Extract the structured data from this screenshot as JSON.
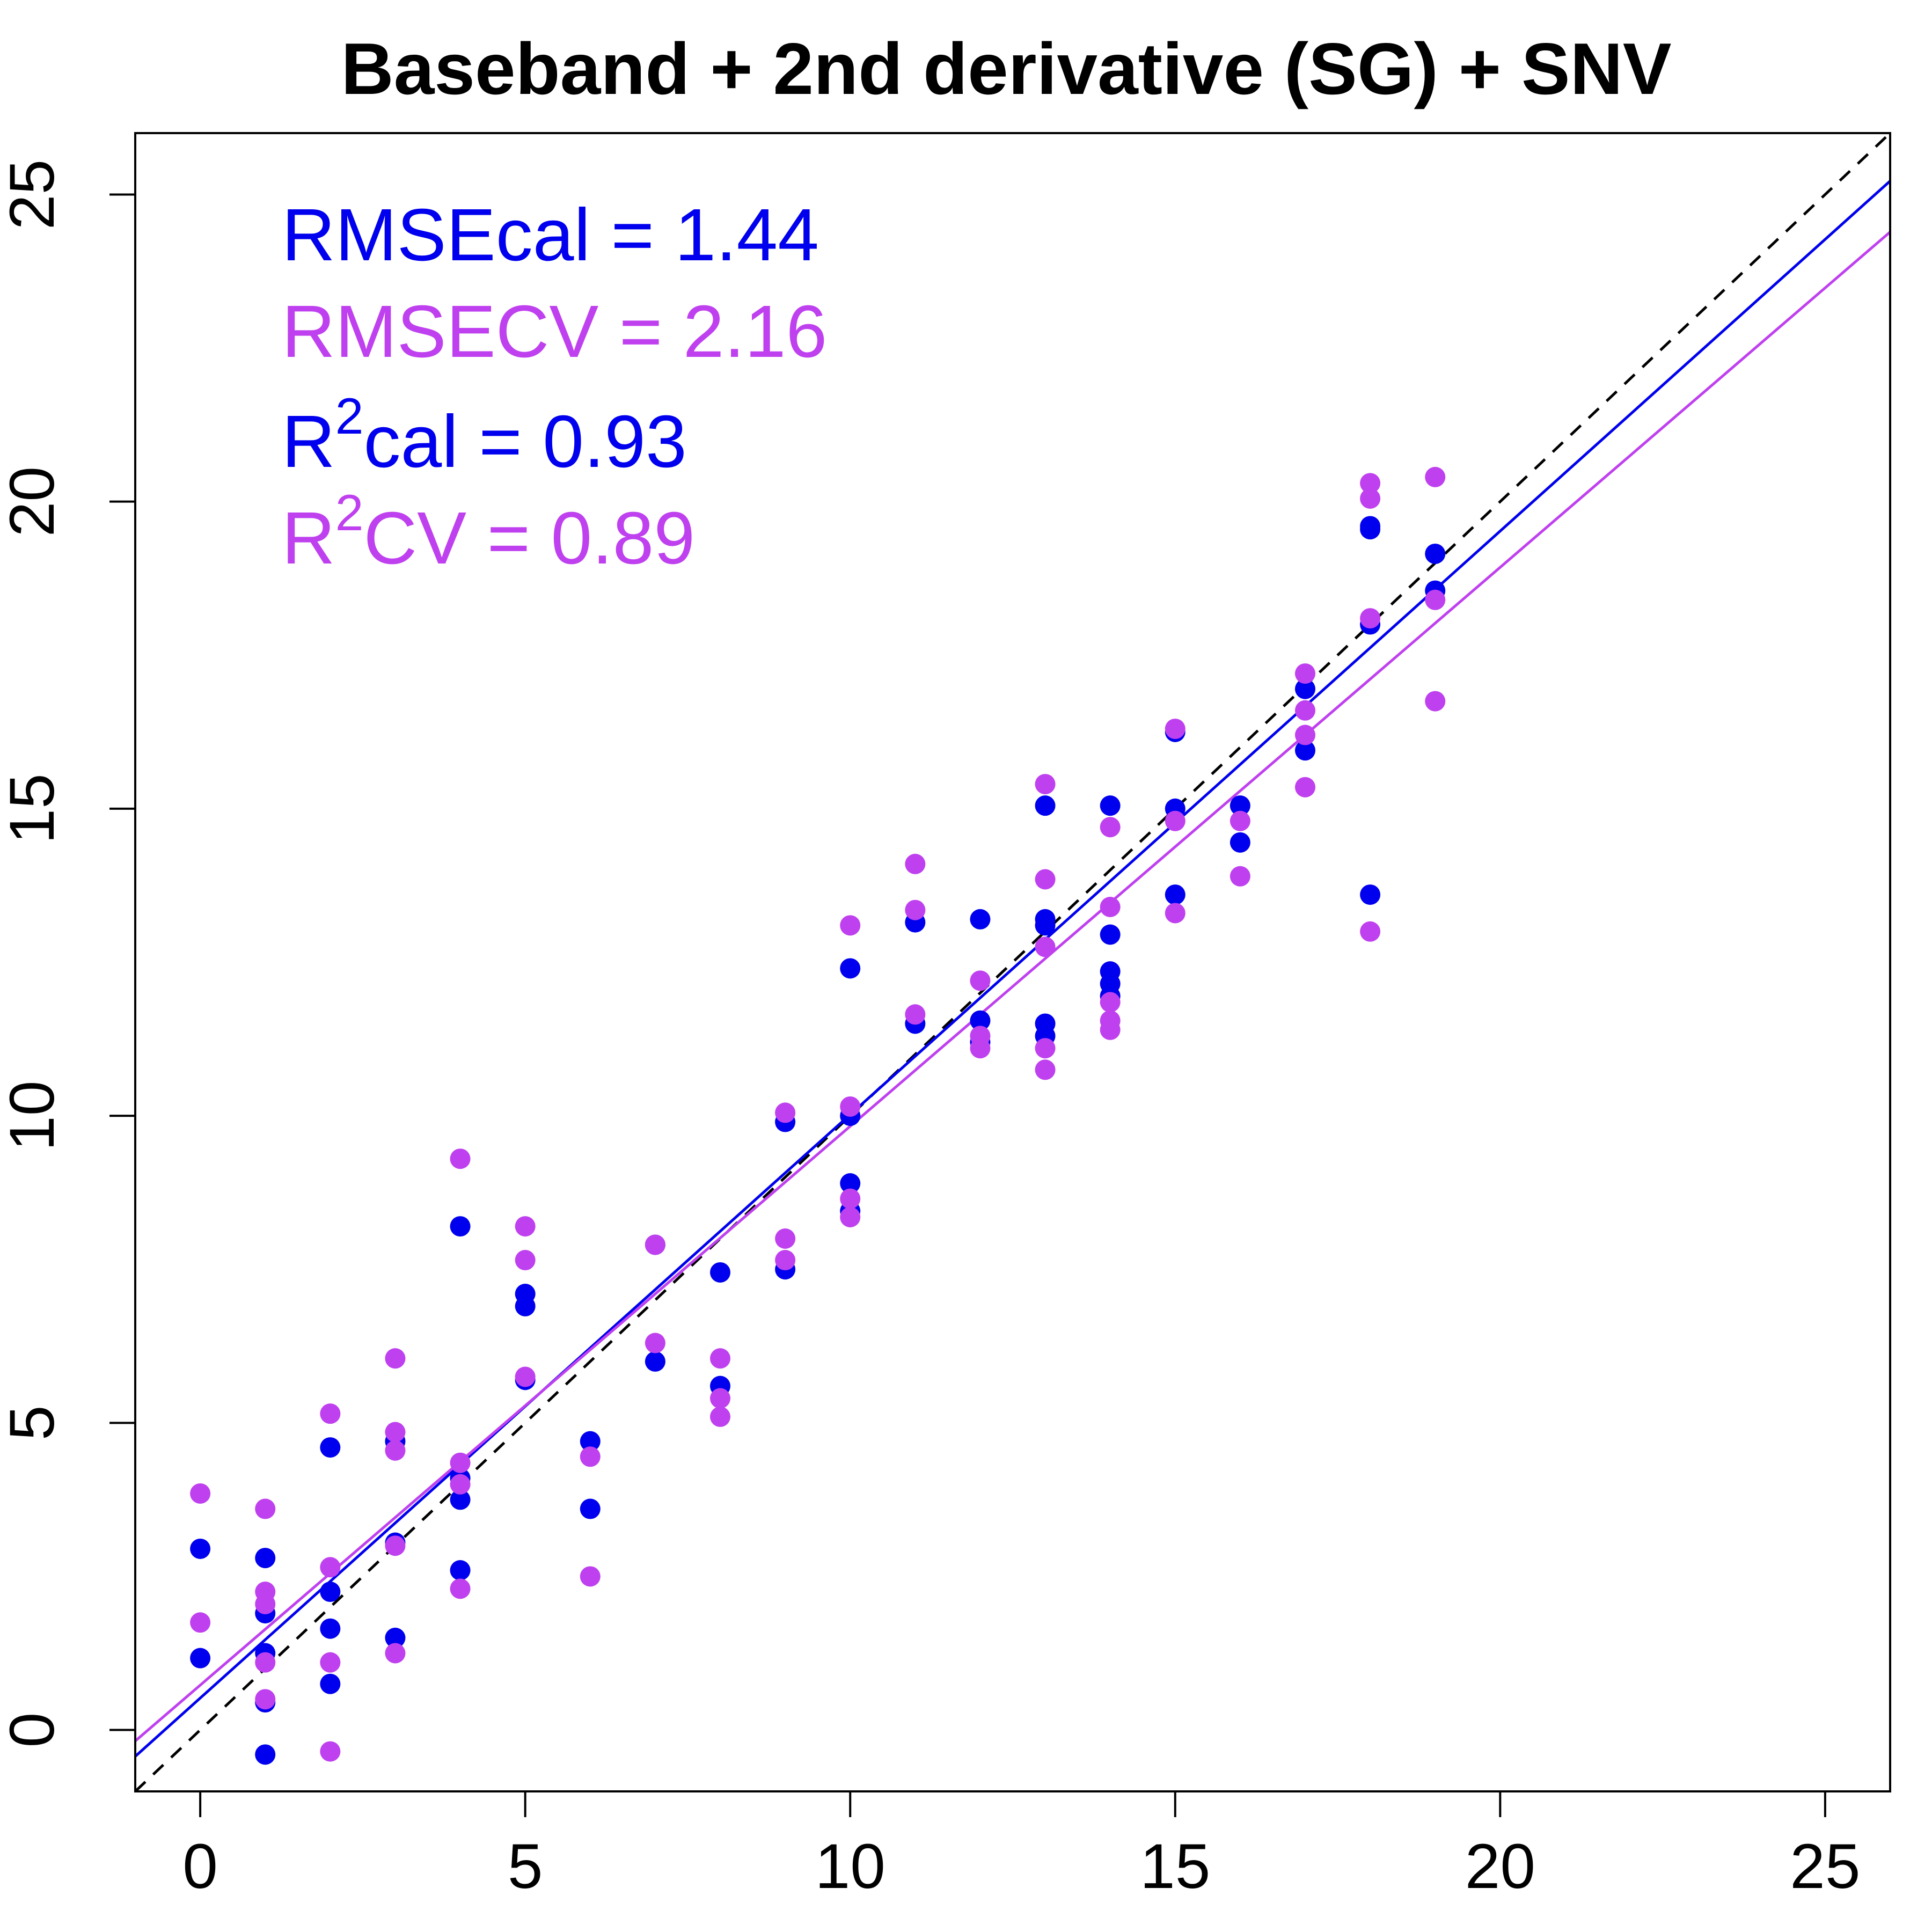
{
  "chart_data": {
    "type": "scatter",
    "title": "Baseband + 2nd derivative (SG) + SNV",
    "xlabel": "",
    "ylabel": "",
    "xlim": [
      -1,
      26
    ],
    "ylim": [
      -1,
      26
    ],
    "xticks": [
      "0",
      "5",
      "10",
      "15",
      "20",
      "25"
    ],
    "yticks": [
      "0",
      "5",
      "10",
      "15",
      "20",
      "25"
    ],
    "grid": false,
    "colors": {
      "cal": "#0000EE",
      "cv": "#BF40EF",
      "identity": "#000000"
    },
    "stats": {
      "rmse_cal": "RMSEcal = 1.44",
      "rmse_cv": "RMSECV = 2.16",
      "r2_cal_prefix": "R",
      "r2_cal_sup": "2",
      "r2_cal_suffix": "cal = 0.93",
      "r2_cv_prefix": "R",
      "r2_cv_sup": "2",
      "r2_cv_suffix": "CV = 0.89"
    },
    "series": [
      {
        "key": "cal",
        "points": [
          [
            0,
            2.95
          ],
          [
            0,
            1.17
          ],
          [
            1,
            2.8
          ],
          [
            1,
            1.9
          ],
          [
            1,
            1.25
          ],
          [
            1,
            0.45
          ],
          [
            1,
            -0.4
          ],
          [
            2,
            4.6
          ],
          [
            2,
            2.25
          ],
          [
            2,
            1.65
          ],
          [
            2,
            0.75
          ],
          [
            3,
            4.7
          ],
          [
            3,
            3.05
          ],
          [
            3,
            1.5
          ],
          [
            4,
            8.2
          ],
          [
            4,
            4.1
          ],
          [
            4,
            3.75
          ],
          [
            4,
            2.6
          ],
          [
            5,
            7.1
          ],
          [
            5,
            6.9
          ],
          [
            5,
            5.7
          ],
          [
            6,
            4.7
          ],
          [
            6,
            3.6
          ],
          [
            7,
            7.9
          ],
          [
            7,
            6.0
          ],
          [
            8,
            7.45
          ],
          [
            8,
            5.6
          ],
          [
            9,
            9.9
          ],
          [
            9,
            7.5
          ],
          [
            10,
            12.4
          ],
          [
            10,
            10.0
          ],
          [
            10,
            8.9
          ],
          [
            10,
            8.45
          ],
          [
            11,
            13.15
          ],
          [
            11,
            11.5
          ],
          [
            12,
            13.2
          ],
          [
            12,
            11.55
          ],
          [
            12,
            11.2
          ],
          [
            13,
            15.05
          ],
          [
            13,
            13.2
          ],
          [
            13,
            13.1
          ],
          [
            13,
            11.5
          ],
          [
            13,
            11.3
          ],
          [
            14,
            15.05
          ],
          [
            14,
            12.95
          ],
          [
            14,
            12.35
          ],
          [
            14,
            12.15
          ],
          [
            14,
            11.95
          ],
          [
            15,
            16.25
          ],
          [
            15,
            15.0
          ],
          [
            15,
            13.6
          ],
          [
            16,
            15.05
          ],
          [
            16,
            14.45
          ],
          [
            17,
            16.95
          ],
          [
            17,
            15.95
          ],
          [
            18,
            19.6
          ],
          [
            18,
            19.55
          ],
          [
            18,
            18.0
          ],
          [
            18,
            13.6
          ],
          [
            19,
            19.15
          ],
          [
            19,
            18.55
          ]
        ]
      },
      {
        "key": "cv",
        "points": [
          [
            0,
            3.85
          ],
          [
            0,
            1.75
          ],
          [
            1,
            3.6
          ],
          [
            1,
            2.25
          ],
          [
            1,
            2.05
          ],
          [
            1,
            1.1
          ],
          [
            1,
            0.5
          ],
          [
            2,
            5.15
          ],
          [
            2,
            2.65
          ],
          [
            2,
            1.1
          ],
          [
            2,
            -0.35
          ],
          [
            3,
            6.05
          ],
          [
            3,
            4.85
          ],
          [
            3,
            4.55
          ],
          [
            3,
            3.0
          ],
          [
            3,
            1.25
          ],
          [
            4,
            9.3
          ],
          [
            4,
            4.35
          ],
          [
            4,
            4.0
          ],
          [
            4,
            2.3
          ],
          [
            5,
            8.2
          ],
          [
            5,
            7.65
          ],
          [
            5,
            5.75
          ],
          [
            6,
            4.45
          ],
          [
            6,
            2.5
          ],
          [
            7,
            7.9
          ],
          [
            7,
            6.3
          ],
          [
            8,
            6.05
          ],
          [
            8,
            5.4
          ],
          [
            8,
            5.1
          ],
          [
            9,
            10.05
          ],
          [
            9,
            8.0
          ],
          [
            9,
            7.65
          ],
          [
            10,
            13.1
          ],
          [
            10,
            10.15
          ],
          [
            10,
            8.65
          ],
          [
            10,
            8.35
          ],
          [
            11,
            14.1
          ],
          [
            11,
            13.35
          ],
          [
            11,
            11.65
          ],
          [
            12,
            12.2
          ],
          [
            12,
            11.3
          ],
          [
            12,
            11.1
          ],
          [
            13,
            15.4
          ],
          [
            13,
            13.85
          ],
          [
            13,
            12.75
          ],
          [
            13,
            11.1
          ],
          [
            13,
            10.75
          ],
          [
            14,
            14.7
          ],
          [
            14,
            13.4
          ],
          [
            14,
            11.85
          ],
          [
            14,
            11.55
          ],
          [
            14,
            11.4
          ],
          [
            15,
            16.3
          ],
          [
            15,
            14.8
          ],
          [
            15,
            13.3
          ],
          [
            16,
            14.8
          ],
          [
            16,
            13.9
          ],
          [
            17,
            17.2
          ],
          [
            17,
            16.6
          ],
          [
            17,
            16.2
          ],
          [
            17,
            15.35
          ],
          [
            18,
            20.3
          ],
          [
            18,
            20.05
          ],
          [
            18,
            18.1
          ],
          [
            18,
            13.0
          ],
          [
            19,
            20.4
          ],
          [
            19,
            18.4
          ],
          [
            19,
            16.75
          ]
        ]
      }
    ],
    "lines": [
      {
        "key": "identity",
        "slope": 1.0,
        "intercept": 0.0,
        "style": "dashed"
      },
      {
        "key": "cal",
        "slope": 0.95,
        "intercept": 0.52,
        "style": "solid"
      },
      {
        "key": "cv",
        "slope": 0.91,
        "intercept": 0.73,
        "style": "solid"
      }
    ]
  }
}
